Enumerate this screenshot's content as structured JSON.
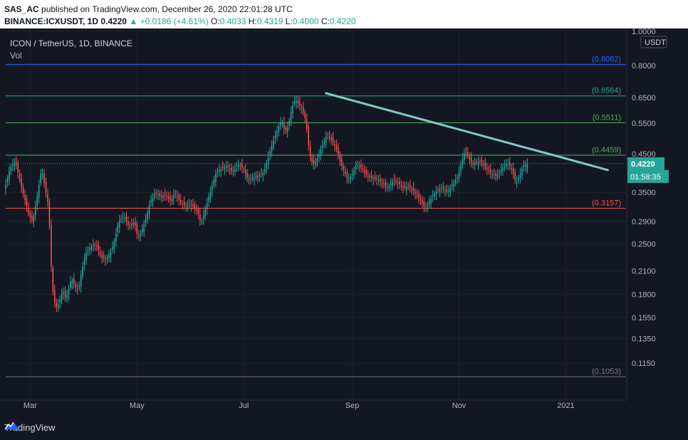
{
  "header": {
    "publisher": "SAS_AC",
    "published_text": "published on TradingView.com, December 26, 2020 22:01:28 UTC",
    "symbol": "BINANCE:ICXUSDT, 1D",
    "last": "0.4220",
    "change": "▲ +0.0186 (+4.61%)",
    "o_label": "O:",
    "o_value": "0.4033",
    "h_label": "H:",
    "h_value": "0.4319",
    "l_label": "L:",
    "l_value": "0.4000",
    "c_label": "C:",
    "c_value": "0.4220"
  },
  "footer": {
    "brand": "TradingView"
  },
  "colors": {
    "background": "#131722",
    "up": "#26a69a",
    "down": "#ef5350",
    "grid": "#1e222d",
    "axis_text": "#b2b5be",
    "trendline": "#80cbc4"
  },
  "chart_data": {
    "type": "candlestick",
    "title": "ICON / TetherUS, 1D, BINANCE",
    "subtitle": "Vol",
    "y_axis": {
      "scale": "log",
      "unit_label": "USDT",
      "ylim": [
        0.0978,
        1.0
      ],
      "ticks": [
        1.0,
        0.8,
        0.65,
        0.55,
        0.45,
        0.35,
        0.29,
        0.25,
        0.21,
        0.18,
        0.155,
        0.135,
        0.115
      ],
      "tick_labels": [
        "1.0000",
        "0.8000",
        "0.6500",
        "0.5500",
        "0.4500",
        "0.3500",
        "0.2900",
        "0.2500",
        "0.2100",
        "0.1800",
        "0.1550",
        "0.1350",
        "0.1150"
      ]
    },
    "x_axis": {
      "ticks": [
        {
          "label": "Mar",
          "day": 0
        },
        {
          "label": "May",
          "day": 61
        },
        {
          "label": "Jul",
          "day": 122
        },
        {
          "label": "Sep",
          "day": 184
        },
        {
          "label": "Nov",
          "day": 245
        },
        {
          "label": "2021",
          "day": 306
        }
      ],
      "start_day": -14,
      "end_day": 340
    },
    "last_price": {
      "value": 0.422,
      "label": "0.4220",
      "countdown": "01:58:35"
    },
    "horizontal_levels": [
      {
        "value": 0.8062,
        "label": "(0.8062)",
        "color": "#2962ff"
      },
      {
        "value": 0.6564,
        "label": "(0.6564)",
        "color": "#26a69a"
      },
      {
        "value": 0.5511,
        "label": "(0.5511)",
        "color": "#4caf50"
      },
      {
        "value": 0.4459,
        "label": "(0.4459)",
        "color": "#4caf50"
      },
      {
        "value": 0.3157,
        "label": "(0.3157)",
        "color": "#ef5350"
      },
      {
        "value": 0.1053,
        "label": "(0.1053)",
        "color": "#787b86"
      }
    ],
    "trendline": {
      "start": {
        "day": 169,
        "value": 0.668
      },
      "end": {
        "day": 330,
        "value": 0.405
      },
      "color": "#80cbc4"
    },
    "price_path": [
      [
        -14,
        0.36
      ],
      [
        -11,
        0.41
      ],
      [
        -8,
        0.43
      ],
      [
        -5,
        0.37
      ],
      [
        -3,
        0.34
      ],
      [
        0,
        0.3
      ],
      [
        2,
        0.29
      ],
      [
        4,
        0.33
      ],
      [
        7,
        0.41
      ],
      [
        9,
        0.36
      ],
      [
        11,
        0.32
      ],
      [
        13,
        0.19
      ],
      [
        15,
        0.165
      ],
      [
        17,
        0.17
      ],
      [
        19,
        0.185
      ],
      [
        21,
        0.175
      ],
      [
        24,
        0.2
      ],
      [
        26,
        0.19
      ],
      [
        28,
        0.185
      ],
      [
        30,
        0.21
      ],
      [
        32,
        0.235
      ],
      [
        35,
        0.245
      ],
      [
        38,
        0.25
      ],
      [
        41,
        0.23
      ],
      [
        44,
        0.225
      ],
      [
        47,
        0.24
      ],
      [
        49,
        0.26
      ],
      [
        51,
        0.29
      ],
      [
        54,
        0.3
      ],
      [
        57,
        0.28
      ],
      [
        60,
        0.29
      ],
      [
        62,
        0.26
      ],
      [
        64,
        0.27
      ],
      [
        67,
        0.3
      ],
      [
        69,
        0.33
      ],
      [
        72,
        0.35
      ],
      [
        75,
        0.34
      ],
      [
        78,
        0.345
      ],
      [
        81,
        0.33
      ],
      [
        83,
        0.35
      ],
      [
        86,
        0.33
      ],
      [
        89,
        0.32
      ],
      [
        92,
        0.325
      ],
      [
        95,
        0.315
      ],
      [
        97,
        0.3
      ],
      [
        98,
        0.285
      ],
      [
        101,
        0.32
      ],
      [
        104,
        0.36
      ],
      [
        107,
        0.4
      ],
      [
        110,
        0.41
      ],
      [
        113,
        0.415
      ],
      [
        116,
        0.4
      ],
      [
        119,
        0.42
      ],
      [
        122,
        0.41
      ],
      [
        125,
        0.38
      ],
      [
        128,
        0.385
      ],
      [
        131,
        0.39
      ],
      [
        134,
        0.4
      ],
      [
        137,
        0.45
      ],
      [
        140,
        0.5
      ],
      [
        142,
        0.53
      ],
      [
        144,
        0.56
      ],
      [
        146,
        0.52
      ],
      [
        148,
        0.54
      ],
      [
        150,
        0.61
      ],
      [
        152,
        0.64
      ],
      [
        154,
        0.62
      ],
      [
        156,
        0.6
      ],
      [
        158,
        0.56
      ],
      [
        160,
        0.45
      ],
      [
        162,
        0.42
      ],
      [
        164,
        0.43
      ],
      [
        167,
        0.47
      ],
      [
        170,
        0.51
      ],
      [
        172,
        0.5
      ],
      [
        174,
        0.48
      ],
      [
        176,
        0.46
      ],
      [
        178,
        0.42
      ],
      [
        180,
        0.4
      ],
      [
        182,
        0.38
      ],
      [
        184,
        0.39
      ],
      [
        187,
        0.42
      ],
      [
        190,
        0.41
      ],
      [
        193,
        0.39
      ],
      [
        196,
        0.385
      ],
      [
        199,
        0.38
      ],
      [
        202,
        0.37
      ],
      [
        205,
        0.36
      ],
      [
        208,
        0.38
      ],
      [
        211,
        0.37
      ],
      [
        214,
        0.36
      ],
      [
        217,
        0.365
      ],
      [
        220,
        0.35
      ],
      [
        222,
        0.34
      ],
      [
        224,
        0.33
      ],
      [
        226,
        0.315
      ],
      [
        228,
        0.325
      ],
      [
        230,
        0.34
      ],
      [
        233,
        0.355
      ],
      [
        236,
        0.36
      ],
      [
        239,
        0.35
      ],
      [
        242,
        0.37
      ],
      [
        245,
        0.39
      ],
      [
        247,
        0.43
      ],
      [
        249,
        0.46
      ],
      [
        251,
        0.44
      ],
      [
        253,
        0.42
      ],
      [
        255,
        0.425
      ],
      [
        258,
        0.43
      ],
      [
        261,
        0.41
      ],
      [
        264,
        0.395
      ],
      [
        267,
        0.39
      ],
      [
        270,
        0.41
      ],
      [
        273,
        0.425
      ],
      [
        276,
        0.405
      ],
      [
        278,
        0.37
      ],
      [
        280,
        0.39
      ],
      [
        282,
        0.415
      ],
      [
        284,
        0.422
      ]
    ]
  }
}
